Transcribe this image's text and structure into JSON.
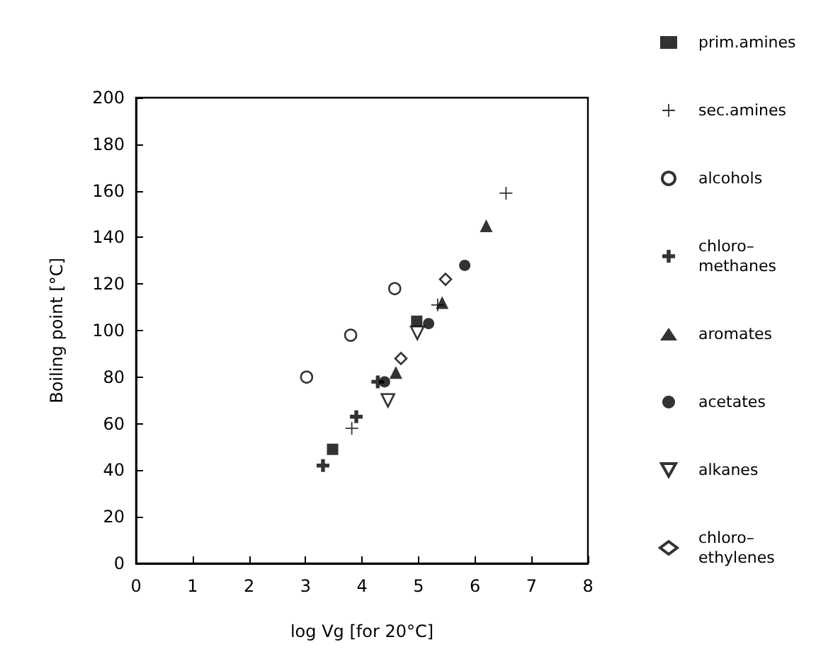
{
  "chart_data": {
    "type": "scatter",
    "xlabel": "log Vg [for 20°C]",
    "ylabel": "Boiling point [°C]",
    "xlim": [
      0,
      8
    ],
    "xticks": [
      0,
      1,
      2,
      3,
      4,
      5,
      6,
      7,
      8
    ],
    "ylim": [
      0,
      200
    ],
    "yticks": [
      0,
      20,
      40,
      60,
      80,
      100,
      120,
      140,
      160,
      180,
      200
    ],
    "grid": false,
    "legend": "right",
    "series": [
      {
        "name": "prim.amines",
        "color": "#000000",
        "marker": "square",
        "x": [
          3.48,
          4.97
        ],
        "values": [
          49,
          104
        ]
      },
      {
        "name": "sec.amines",
        "color": "#000000",
        "marker": "cross",
        "x": [
          3.82,
          5.34,
          6.55
        ],
        "values": [
          58,
          111,
          159
        ]
      },
      {
        "name": "alcohols",
        "color": "#000000",
        "marker": "circle",
        "x": [
          3.02,
          3.8,
          4.58
        ],
        "values": [
          80,
          98,
          118
        ]
      },
      {
        "name": "chloro–methanes",
        "color": "#000000",
        "marker": "cross",
        "x": [
          3.31,
          3.9,
          4.28
        ],
        "values": [
          42,
          63,
          78
        ]
      },
      {
        "name": "aromates",
        "color": "#000000",
        "marker": "triangle",
        "x": [
          4.6,
          5.42,
          6.2
        ],
        "values": [
          82,
          112,
          145
        ]
      },
      {
        "name": "acetates",
        "color": "#000000",
        "marker": "circle",
        "x": [
          4.4,
          5.18,
          5.82
        ],
        "values": [
          78,
          103,
          128
        ]
      },
      {
        "name": "alkanes",
        "color": "#000000",
        "marker": "triangle",
        "x": [
          4.46,
          4.98
        ],
        "values": [
          70,
          99
        ]
      },
      {
        "name": "chloro–ethylenes",
        "color": "#000000",
        "marker": "diamond",
        "x": [
          4.69,
          5.48
        ],
        "values": [
          88,
          122
        ]
      }
    ]
  }
}
